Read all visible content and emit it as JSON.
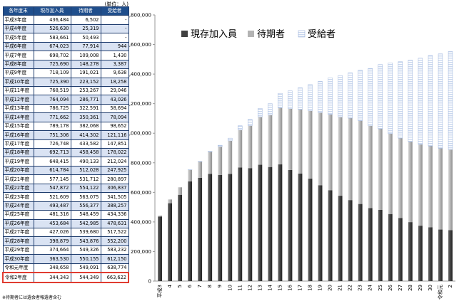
{
  "unit_note": "(単位：人)",
  "footnote": "※待期者には遺会者報遺者含む",
  "table": {
    "headers": [
      "各年度末",
      "現存加入員",
      "待期者",
      "受給者"
    ],
    "rows": [
      [
        "平成3年度",
        "436,484",
        "6,502",
        "-"
      ],
      [
        "平成4年度",
        "526,630",
        "25,319",
        "-"
      ],
      [
        "平成5年度",
        "583,661",
        "50,493",
        "-"
      ],
      [
        "平成6年度",
        "674,023",
        "77,914",
        "944"
      ],
      [
        "平成7年度",
        "698,702",
        "109,008",
        "1,430"
      ],
      [
        "平成8年度",
        "725,690",
        "148,278",
        "3,387"
      ],
      [
        "平成9年度",
        "718,109",
        "191,021",
        "9,638"
      ],
      [
        "平成10年度",
        "725,390",
        "223,152",
        "18,258"
      ],
      [
        "平成11年度",
        "768,519",
        "253,267",
        "29,046"
      ],
      [
        "平成12年度",
        "764,094",
        "286,771",
        "43,026"
      ],
      [
        "平成13年度",
        "786,725",
        "322,591",
        "58,694"
      ],
      [
        "平成14年度",
        "771,662",
        "350,361",
        "78,094"
      ],
      [
        "平成15年度",
        "789,178",
        "382,068",
        "98,652"
      ],
      [
        "平成16年度",
        "751,306",
        "414,302",
        "121,116"
      ],
      [
        "平成17年度",
        "726,748",
        "433,582",
        "147,851"
      ],
      [
        "平成18年度",
        "692,713",
        "458,458",
        "178,022"
      ],
      [
        "平成19年度",
        "648,415",
        "490,133",
        "212,024"
      ],
      [
        "平成20年度",
        "614,784",
        "512,028",
        "247,925"
      ],
      [
        "平成21年度",
        "577,145",
        "531,712",
        "280,897"
      ],
      [
        "平成22年度",
        "547,872",
        "554,122",
        "306,837"
      ],
      [
        "平成23年度",
        "521,609",
        "563,075",
        "341,505"
      ],
      [
        "平成24年度",
        "493,487",
        "556,377",
        "388,257"
      ],
      [
        "平成25年度",
        "481,316",
        "548,459",
        "434,336"
      ],
      [
        "平成26年度",
        "453,684",
        "542,985",
        "478,631"
      ],
      [
        "平成27年度",
        "427,026",
        "539,680",
        "517,522"
      ],
      [
        "平成28年度",
        "398,879",
        "543,876",
        "552,200"
      ],
      [
        "平成29年度",
        "374,664",
        "549,326",
        "583,232"
      ],
      [
        "平成30年度",
        "363,530",
        "550,155",
        "612,150"
      ],
      [
        "令和元年度",
        "348,658",
        "549,091",
        "638,774"
      ],
      [
        "令和2年度",
        "344,343",
        "544,349",
        "663,622"
      ]
    ],
    "highlight_row_index": 29
  },
  "colors": {
    "header_bg": "#1f4e8c",
    "stripe": "#dae3f3",
    "highlight": "#e03c31",
    "series_current": "#404040",
    "series_waiting": "#b3b3b3",
    "series_receiving": "#c9d7ee"
  },
  "chart_data": {
    "type": "bar",
    "stacked": true,
    "categories": [
      "平成3",
      "4",
      "5",
      "6",
      "7",
      "8",
      "9",
      "10",
      "11",
      "12",
      "13",
      "14",
      "15",
      "16",
      "17",
      "18",
      "19",
      "20",
      "21",
      "22",
      "23",
      "24",
      "25",
      "26",
      "27",
      "28",
      "29",
      "30",
      "令和元",
      "2"
    ],
    "series": [
      {
        "name": "現存加入員",
        "values": [
          436484,
          526630,
          583661,
          674023,
          698702,
          725690,
          718109,
          725390,
          768519,
          764094,
          786725,
          771662,
          789178,
          751306,
          726748,
          692713,
          648415,
          614784,
          577145,
          547872,
          521609,
          493487,
          481316,
          453684,
          427026,
          398879,
          374664,
          363530,
          348658,
          344343
        ]
      },
      {
        "name": "待期者",
        "values": [
          6502,
          25319,
          50493,
          77914,
          109008,
          148278,
          191021,
          223152,
          253267,
          286771,
          322591,
          350361,
          382068,
          414302,
          433582,
          458458,
          490133,
          512028,
          531712,
          554122,
          563075,
          556377,
          548459,
          542985,
          539680,
          543876,
          549326,
          550155,
          549091,
          544349
        ]
      },
      {
        "name": "受給者",
        "values": [
          0,
          0,
          0,
          944,
          1430,
          3387,
          9638,
          18258,
          29046,
          43026,
          58694,
          78094,
          98652,
          121116,
          147851,
          178022,
          212024,
          247925,
          280897,
          306837,
          341505,
          388257,
          434336,
          478631,
          517522,
          552200,
          583232,
          612150,
          638774,
          663622
        ]
      }
    ],
    "ylim": [
      0,
      1800000
    ],
    "yticks": [
      0,
      200000,
      400000,
      600000,
      800000,
      1000000,
      1200000,
      1400000,
      1600000,
      1800000
    ],
    "ytick_labels": [
      "0",
      "200,000",
      "400,000",
      "600,000",
      "800,000",
      "1,000,000",
      "1,200,000",
      "1,400,000",
      "1,600,000",
      "1,800,000"
    ],
    "grid": false,
    "legend_position": "top-left"
  }
}
